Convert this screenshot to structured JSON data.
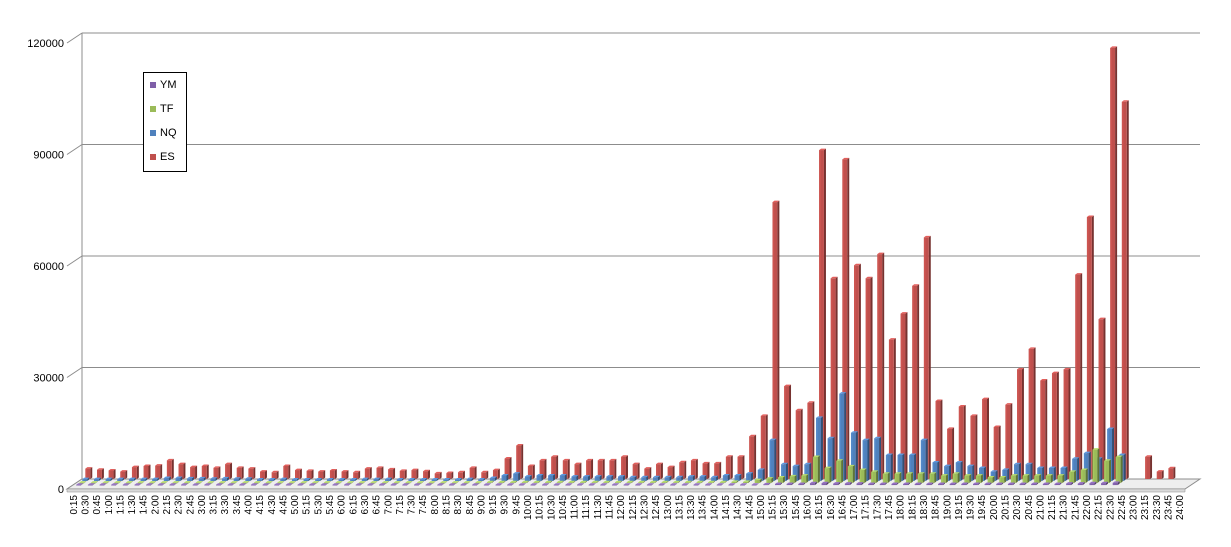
{
  "chart_data": {
    "type": "bar",
    "title": "",
    "xlabel": "",
    "ylabel": "",
    "ylim": [
      0,
      120000
    ],
    "yticks": [
      "0",
      "30000",
      "60000",
      "90000",
      "120000"
    ],
    "grid": true,
    "legend_position": "top-left",
    "categories": [
      "0:15",
      "0:30",
      "0:45",
      "1:00",
      "1:15",
      "1:30",
      "1:45",
      "2:00",
      "2:15",
      "2:30",
      "2:45",
      "3:00",
      "3:15",
      "3:30",
      "3:45",
      "4:00",
      "4:15",
      "4:30",
      "4:45",
      "5:00",
      "5:15",
      "5:30",
      "5:45",
      "6:00",
      "6:15",
      "6:30",
      "6:45",
      "7:00",
      "7:15",
      "7:30",
      "7:45",
      "8:00",
      "8:15",
      "8:30",
      "8:45",
      "9:00",
      "9:15",
      "9:30",
      "9:45",
      "10:00",
      "10:15",
      "10:30",
      "10:45",
      "11:00",
      "11:15",
      "11:30",
      "11:45",
      "12:00",
      "12:15",
      "12:30",
      "12:45",
      "13:00",
      "13:15",
      "13:30",
      "13:45",
      "14:00",
      "14:15",
      "14:30",
      "14:45",
      "15:00",
      "15:15",
      "15:30",
      "15:45",
      "16:00",
      "16:15",
      "16:30",
      "16:45",
      "17:00",
      "17:15",
      "17:30",
      "17:45",
      "18:00",
      "18:15",
      "18:30",
      "18:45",
      "19:00",
      "19:15",
      "19:30",
      "19:45",
      "20:00",
      "20:15",
      "20:30",
      "20:45",
      "21:00",
      "21:15",
      "21:30",
      "21:45",
      "22:00",
      "22:15",
      "22:30",
      "22:45",
      "23:00",
      "23:15",
      "23:30",
      "23:45",
      "24:00"
    ],
    "series": [
      {
        "name": "YM",
        "color": "#7f5fa8",
        "values": [
          100,
          100,
          100,
          100,
          100,
          100,
          100,
          100,
          100,
          100,
          100,
          100,
          100,
          100,
          100,
          100,
          100,
          100,
          100,
          100,
          100,
          100,
          100,
          100,
          100,
          100,
          100,
          100,
          100,
          100,
          100,
          100,
          100,
          100,
          100,
          100,
          100,
          100,
          100,
          100,
          100,
          100,
          100,
          100,
          100,
          100,
          100,
          100,
          100,
          100,
          100,
          100,
          100,
          100,
          100,
          100,
          100,
          100,
          100,
          200,
          300,
          300,
          300,
          500,
          500,
          400,
          400,
          400,
          300,
          300,
          300,
          300,
          300,
          300,
          300,
          300,
          300,
          300,
          300,
          300,
          300,
          300,
          300,
          300,
          300,
          400,
          400,
          500,
          500,
          600,
          0,
          0,
          0,
          0,
          0,
          0
        ]
      },
      {
        "name": "TF",
        "color": "#9bbb59",
        "values": [
          100,
          100,
          100,
          100,
          100,
          100,
          100,
          100,
          100,
          100,
          100,
          100,
          100,
          100,
          100,
          100,
          100,
          100,
          100,
          100,
          100,
          100,
          100,
          100,
          100,
          100,
          100,
          100,
          100,
          100,
          100,
          100,
          100,
          100,
          100,
          200,
          200,
          200,
          200,
          200,
          200,
          200,
          200,
          200,
          200,
          200,
          200,
          200,
          200,
          200,
          200,
          200,
          200,
          200,
          200,
          200,
          300,
          300,
          800,
          1200,
          1500,
          1800,
          2000,
          7000,
          4000,
          6000,
          4500,
          3500,
          3000,
          2500,
          2500,
          2500,
          2500,
          2500,
          2000,
          2500,
          2000,
          2000,
          1500,
          1500,
          2000,
          2000,
          2000,
          2000,
          2000,
          3000,
          3500,
          9000,
          6000,
          7000,
          0,
          0,
          0,
          0,
          0,
          0
        ]
      },
      {
        "name": "NQ",
        "color": "#4f81bd",
        "values": [
          500,
          500,
          500,
          500,
          500,
          500,
          500,
          800,
          800,
          700,
          700,
          600,
          700,
          600,
          600,
          400,
          400,
          500,
          400,
          400,
          400,
          400,
          400,
          400,
          500,
          500,
          500,
          400,
          400,
          400,
          400,
          400,
          400,
          500,
          400,
          800,
          1500,
          2000,
          1200,
          1500,
          1500,
          1500,
          1200,
          1200,
          1200,
          1200,
          1200,
          1000,
          1000,
          1000,
          1000,
          1000,
          1200,
          1200,
          1000,
          1500,
          1500,
          2000,
          3000,
          11000,
          4500,
          4000,
          4500,
          17000,
          11500,
          23500,
          13000,
          11000,
          11500,
          7000,
          7000,
          7000,
          11000,
          5000,
          4000,
          5000,
          4000,
          3500,
          2500,
          3000,
          4500,
          4500,
          3500,
          3500,
          3500,
          6000,
          7500,
          6000,
          14000,
          7000,
          0,
          0,
          0,
          0,
          0,
          0
        ]
      },
      {
        "name": "ES",
        "color": "#c0504d",
        "values": [
          2800,
          2500,
          2300,
          2000,
          3200,
          3500,
          3600,
          5000,
          4000,
          3200,
          3500,
          3000,
          4000,
          3000,
          2800,
          2000,
          1800,
          3500,
          2400,
          2200,
          2000,
          2300,
          2000,
          1800,
          2800,
          3000,
          2600,
          2200,
          2400,
          2100,
          1500,
          1600,
          1800,
          3000,
          1800,
          2400,
          5500,
          9000,
          3500,
          5000,
          6000,
          5000,
          4000,
          5000,
          5000,
          5000,
          6000,
          4000,
          2800,
          4000,
          3200,
          4500,
          5000,
          4200,
          4200,
          6000,
          6000,
          11500,
          17000,
          74500,
          25000,
          18500,
          20500,
          88500,
          54000,
          86000,
          57500,
          54000,
          60500,
          37500,
          44500,
          52000,
          65000,
          21000,
          13500,
          19500,
          17000,
          21500,
          14000,
          20000,
          29500,
          35000,
          26500,
          28500,
          29500,
          55000,
          70500,
          43000,
          116000,
          101500,
          0,
          6000,
          2000,
          2900,
          0,
          0
        ]
      }
    ]
  }
}
